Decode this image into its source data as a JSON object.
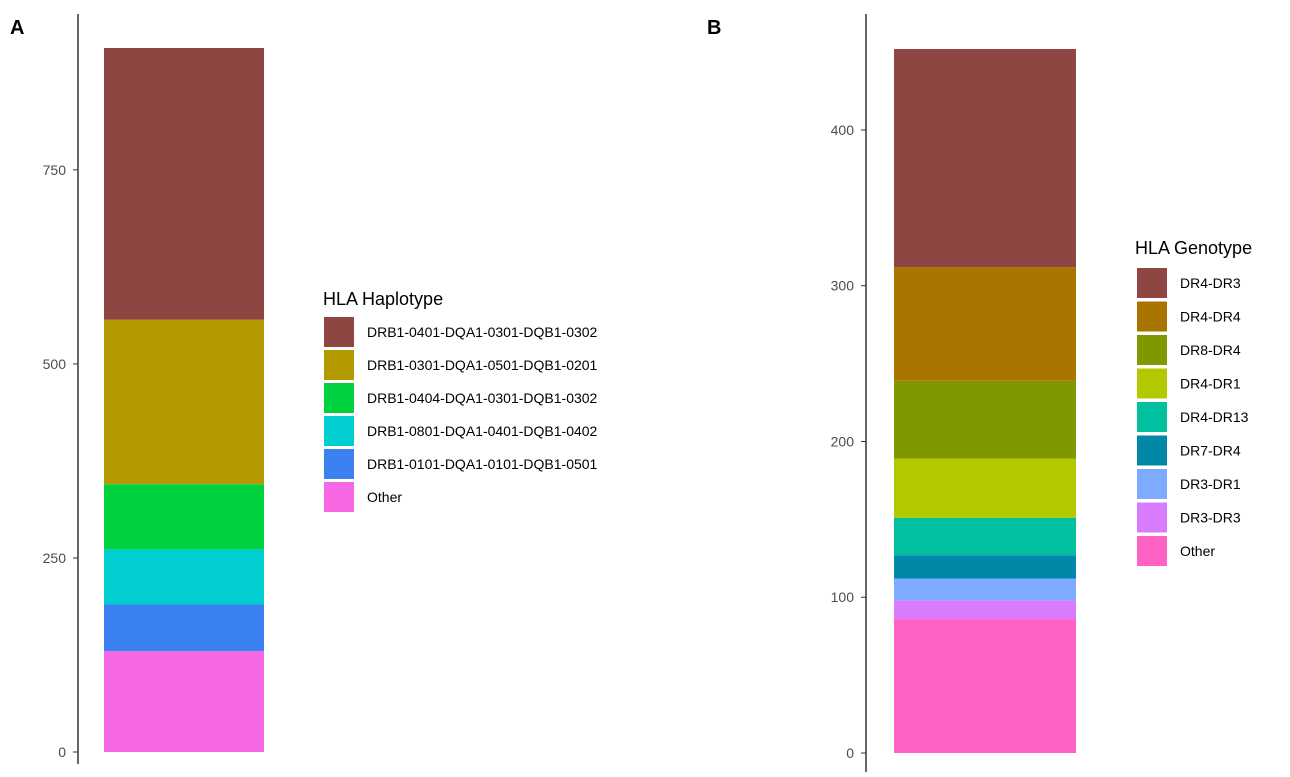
{
  "chart_data": [
    {
      "type": "bar",
      "stacked": true,
      "panel_label": "A",
      "legend_title": "HLA Haplotype",
      "ylim": [
        0,
        910
      ],
      "yticks": [
        0,
        250,
        500,
        750
      ],
      "ytick_labels": [
        "0",
        "250",
        "500",
        "750"
      ],
      "series": [
        {
          "name": "DRB1-0401-DQA1-0301-DQB1-0302",
          "value": 350,
          "color": "#8f4542"
        },
        {
          "name": "DRB1-0301-DQA1-0501-DQB1-0201",
          "value": 212,
          "color": "#b39a00"
        },
        {
          "name": "DRB1-0404-DQA1-0301-DQB1-0302",
          "value": 84,
          "color": "#00d13f"
        },
        {
          "name": "DRB1-0801-DQA1-0401-DQB1-0402",
          "value": 71,
          "color": "#00ced1"
        },
        {
          "name": "DRB1-0101-DQA1-0101-DQB1-0501",
          "value": 60,
          "color": "#3b82f0"
        },
        {
          "name": "Other",
          "value": 130,
          "color": "#f567e3"
        }
      ]
    },
    {
      "type": "bar",
      "stacked": true,
      "panel_label": "B",
      "legend_title": "HLA Genotype",
      "ylim": [
        0,
        453
      ],
      "yticks": [
        0,
        100,
        200,
        300,
        400
      ],
      "ytick_labels": [
        "0",
        "100",
        "200",
        "300",
        "400"
      ],
      "series": [
        {
          "name": "DR4-DR3",
          "value": 140,
          "color": "#8f4542"
        },
        {
          "name": "DR4-DR4",
          "value": 73,
          "color": "#aa7400"
        },
        {
          "name": "DR8-DR4",
          "value": 50,
          "color": "#809800"
        },
        {
          "name": "DR4-DR1",
          "value": 38,
          "color": "#b4c800"
        },
        {
          "name": "DR4-DR13",
          "value": 24,
          "color": "#00c0a0"
        },
        {
          "name": "DR7-DR4",
          "value": 15,
          "color": "#0088a8"
        },
        {
          "name": "DR3-DR1",
          "value": 14,
          "color": "#7eabff"
        },
        {
          "name": "DR3-DR3",
          "value": 12,
          "color": "#d97bfd"
        },
        {
          "name": "Other",
          "value": 86,
          "color": "#ff62c5"
        }
      ]
    }
  ]
}
